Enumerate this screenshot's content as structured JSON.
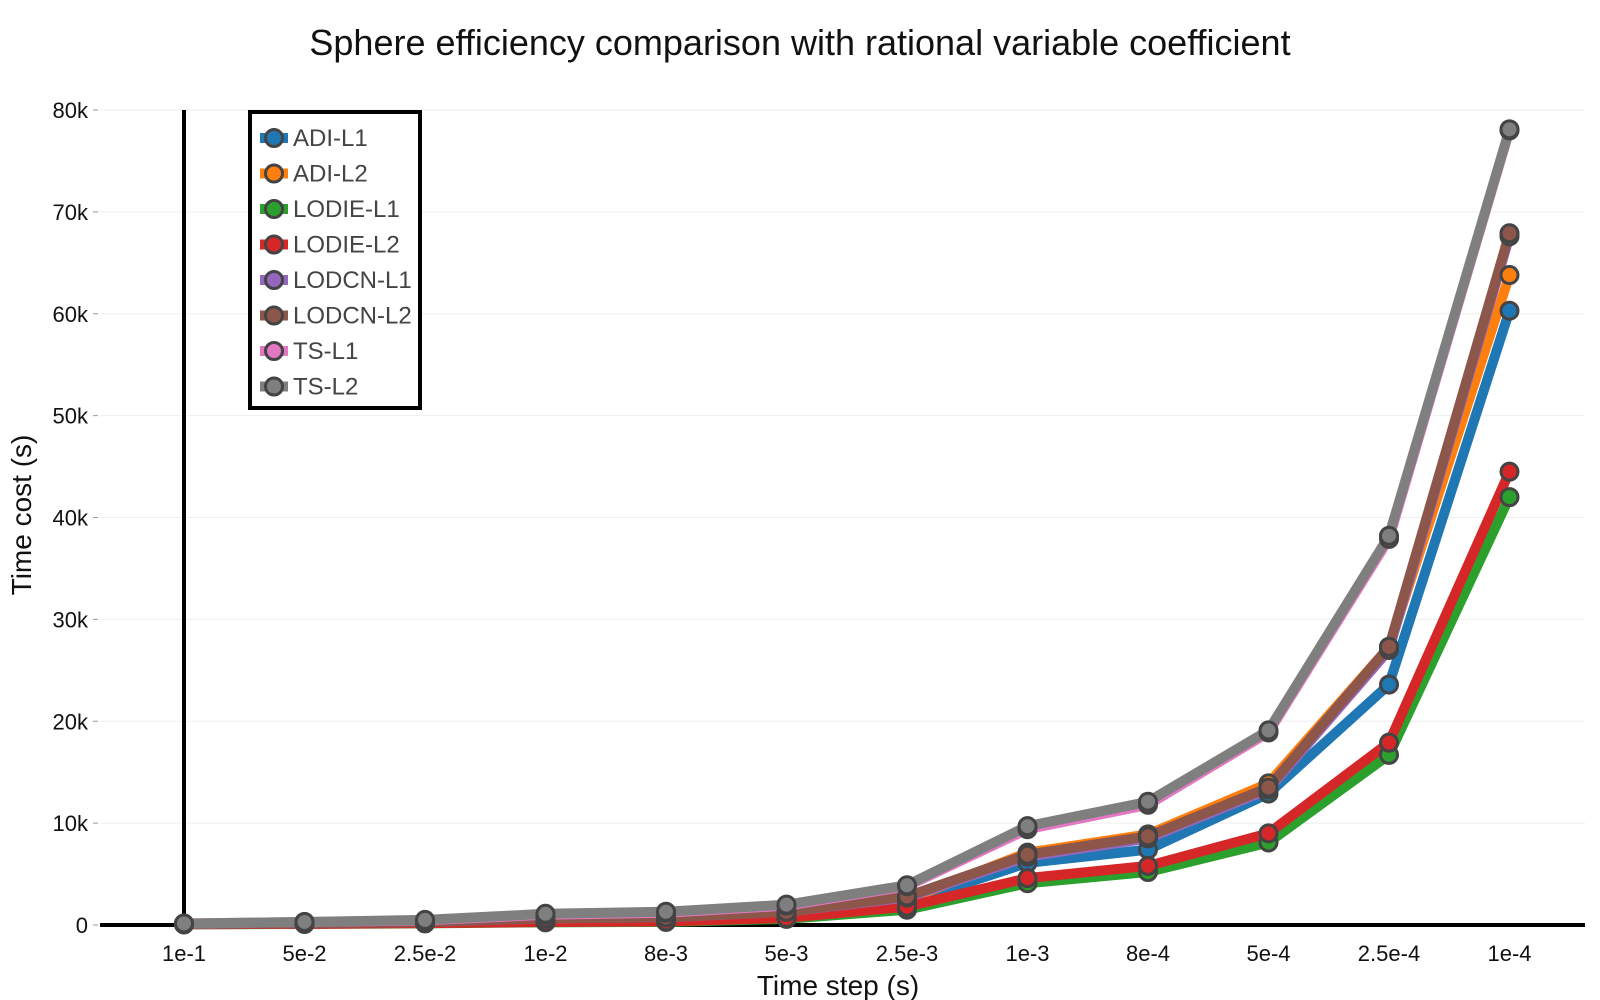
{
  "chart_data": {
    "type": "line",
    "title": "Sphere efficiency comparison with rational variable coefficient",
    "xlabel": "Time step (s)",
    "ylabel": "Time cost (s)",
    "categories": [
      "1e-1",
      "5e-2",
      "2.5e-2",
      "1e-2",
      "8e-3",
      "5e-3",
      "2.5e-3",
      "1e-3",
      "8e-4",
      "5e-4",
      "2.5e-4",
      "1e-4"
    ],
    "ylim": [
      0,
      80000
    ],
    "yticks": [
      0,
      10000,
      20000,
      30000,
      40000,
      50000,
      60000,
      70000,
      80000
    ],
    "ytick_labels": [
      "0",
      "10k",
      "20k",
      "30k",
      "40k",
      "50k",
      "60k",
      "70k",
      "80k"
    ],
    "grid": true,
    "legend_position": "top-left",
    "series": [
      {
        "name": "ADI-L1",
        "color": "#1f77b4",
        "values": [
          80,
          150,
          250,
          500,
          600,
          1000,
          2200,
          6100,
          7400,
          12900,
          23600,
          60300
        ]
      },
      {
        "name": "ADI-L2",
        "color": "#ff7f0e",
        "values": [
          90,
          160,
          260,
          550,
          650,
          1100,
          2500,
          7100,
          8900,
          13900,
          27300,
          63800
        ]
      },
      {
        "name": "LODIE-L1",
        "color": "#2ca02c",
        "values": [
          60,
          100,
          160,
          260,
          300,
          600,
          1500,
          4100,
          5200,
          8100,
          16700,
          42000
        ]
      },
      {
        "name": "LODIE-L2",
        "color": "#d62728",
        "values": [
          70,
          110,
          180,
          300,
          350,
          700,
          1800,
          4600,
          5800,
          9000,
          17900,
          44500
        ]
      },
      {
        "name": "LODCN-L1",
        "color": "#9467bd",
        "values": [
          100,
          180,
          300,
          650,
          750,
          1300,
          2700,
          6700,
          8500,
          13300,
          27000,
          67600
        ]
      },
      {
        "name": "LODCN-L2",
        "color": "#8c564b",
        "values": [
          100,
          180,
          300,
          650,
          750,
          1300,
          2800,
          6900,
          8700,
          13500,
          27300,
          67900
        ]
      },
      {
        "name": "TS-L1",
        "color": "#e377c2",
        "values": [
          150,
          300,
          450,
          1000,
          1200,
          1900,
          3800,
          9400,
          11800,
          18900,
          37900,
          78000
        ]
      },
      {
        "name": "TS-L2",
        "color": "#7f7f7f",
        "values": [
          150,
          300,
          500,
          1100,
          1300,
          2000,
          3900,
          9700,
          12100,
          19100,
          38200,
          78100
        ]
      }
    ]
  }
}
